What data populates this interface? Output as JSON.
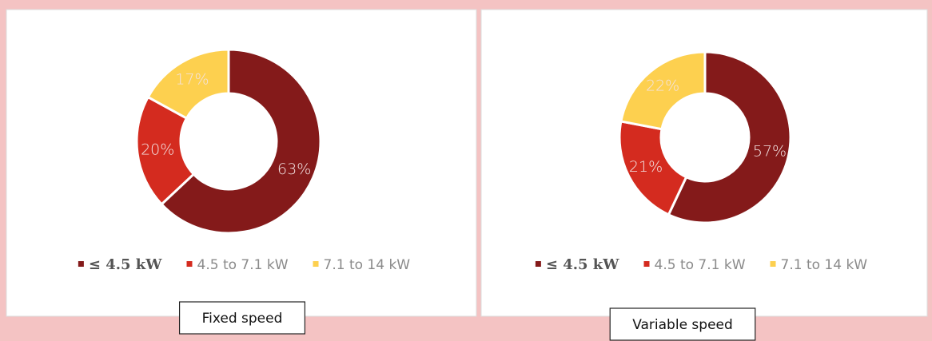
{
  "chart_data": [
    {
      "type": "pie",
      "donut": true,
      "title": "Fixed speed",
      "categories": [
        "≤ 4.5 kW",
        "4.5 to 7.1 kW",
        "7.1 to 14 kW"
      ],
      "values": [
        63,
        20,
        17
      ],
      "value_labels": [
        "63%",
        "20%",
        "17%"
      ],
      "colors": [
        "#841a1a",
        "#d42b1f",
        "#fdd04f"
      ]
    },
    {
      "type": "pie",
      "donut": true,
      "title": "Variable speed",
      "categories": [
        "≤ 4.5 kW",
        "4.5 to 7.1 kW",
        "7.1 to 14 kW"
      ],
      "values": [
        57,
        21,
        22
      ],
      "value_labels": [
        "57%",
        "21%",
        "22%"
      ],
      "colors": [
        "#841a1a",
        "#d42b1f",
        "#fdd04f"
      ]
    }
  ]
}
